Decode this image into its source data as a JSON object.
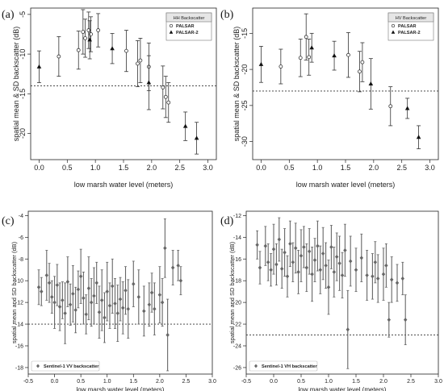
{
  "chart_data": [
    {
      "panel_label": "(a)",
      "type": "scatter",
      "style": "r",
      "xlabel": "low marsh water level (meters)",
      "ylabel": "spatial mean & SD backscatter (dB)",
      "xlim": [
        -0.15,
        3.15
      ],
      "ylim": [
        -23.3,
        -4.2
      ],
      "xticks": [
        0.0,
        0.5,
        1.0,
        1.5,
        2.0,
        2.5,
        3.0
      ],
      "xtick_labels": [
        "0.0",
        "0.5",
        "1.0",
        "1.5",
        "2.0",
        "2.5",
        "3.0"
      ],
      "yticks": [
        -20,
        -15,
        -10,
        -5
      ],
      "ytick_labels": [
        "-20",
        "-15",
        "-10",
        "-5"
      ],
      "threshold": -14.0,
      "legend": {
        "title": "HH Backscatter",
        "position": "top-right"
      },
      "series": [
        {
          "name": "PALSAR",
          "marker": "circle-open",
          "x": [
            0.35,
            0.7,
            0.78,
            0.82,
            0.88,
            0.92,
            1.05,
            1.55,
            1.75,
            1.8,
            1.95,
            2.2,
            2.25,
            2.3
          ],
          "y": [
            -10.3,
            -9.5,
            -7.2,
            -8.0,
            -7.0,
            -7.5,
            -7.0,
            -9.6,
            -11.2,
            -10.8,
            -11.6,
            -14.2,
            -15.4,
            -16.1
          ],
          "err": [
            2.5,
            2.4,
            2.8,
            2.4,
            2.3,
            2.2,
            2.1,
            2.6,
            2.9,
            2.8,
            3.0,
            2.7,
            2.6,
            2.5
          ]
        },
        {
          "name": "PALSAR-2",
          "marker": "triangle-filled",
          "x": [
            0.0,
            0.9,
            1.3,
            1.95,
            2.6,
            2.8
          ],
          "y": [
            -11.6,
            -8.2,
            -9.3,
            -13.6,
            -19.1,
            -20.6
          ],
          "err": [
            2.0,
            2.4,
            1.9,
            3.4,
            1.8,
            2.0
          ]
        }
      ]
    },
    {
      "panel_label": "(b)",
      "type": "scatter",
      "style": "r",
      "xlabel": "low marsh water level (meters)",
      "ylabel": "spatial mean & SD backscatter (dB)",
      "xlim": [
        -0.15,
        3.15
      ],
      "ylim": [
        -32.5,
        -11.5
      ],
      "xticks": [
        0.0,
        0.5,
        1.0,
        1.5,
        2.0,
        2.5,
        3.0
      ],
      "xtick_labels": [
        "0.0",
        "0.5",
        "1.0",
        "1.5",
        "2.0",
        "2.5",
        "3.0"
      ],
      "yticks": [
        -30,
        -25,
        -20,
        -15
      ],
      "ytick_labels": [
        "-30",
        "-25",
        "-20",
        "-15"
      ],
      "threshold": -23.0,
      "legend": {
        "title": "HV Backscatter",
        "position": "top-right"
      },
      "series": [
        {
          "name": "PALSAR",
          "marker": "circle-open",
          "x": [
            0.35,
            0.7,
            0.8,
            0.85,
            1.55,
            1.75,
            1.8,
            2.3
          ],
          "y": [
            -19.6,
            -18.4,
            -15.5,
            -18.3,
            -18.0,
            -20.3,
            -19.0,
            -25.1
          ],
          "err": [
            2.4,
            2.6,
            3.2,
            2.5,
            3.1,
            2.8,
            2.7,
            2.7
          ]
        },
        {
          "name": "PALSAR-2",
          "marker": "triangle-filled",
          "x": [
            0.0,
            0.9,
            1.3,
            1.95,
            2.6,
            2.8
          ],
          "y": [
            -19.3,
            -17.0,
            -18.1,
            -22.0,
            -25.4,
            -29.4
          ],
          "err": [
            2.5,
            2.0,
            2.0,
            3.5,
            1.4,
            1.6
          ]
        }
      ]
    },
    {
      "panel_label": "(c)",
      "type": "scatter",
      "style": "python",
      "xlabel": "low marsh water level (meters)",
      "ylabel": "spatial mean and SD backscatter (dB)",
      "xlim": [
        -0.5,
        3.0
      ],
      "ylim": [
        -18.6,
        -3.6
      ],
      "xticks": [
        -0.5,
        0.0,
        0.5,
        1.0,
        1.5,
        2.0,
        2.5,
        3.0
      ],
      "xtick_labels": [
        "-0.5",
        "0.0",
        "0.5",
        "1.0",
        "1.5",
        "2.0",
        "2.5",
        "3.0"
      ],
      "yticks": [
        -18,
        -16,
        -14,
        -12,
        -10,
        -8,
        -6,
        -4
      ],
      "ytick_labels": [
        "-18",
        "-16",
        "-14",
        "-12",
        "-10",
        "-8",
        "-6",
        "-4"
      ],
      "threshold": -14.0,
      "legend": {
        "title": "",
        "position": "bottom-left"
      },
      "series": [
        {
          "name": "Sentinel-1 VV backscatter",
          "marker": "diamond-filled",
          "x": [
            -0.3,
            -0.25,
            -0.15,
            -0.1,
            -0.05,
            0.0,
            0.05,
            0.1,
            0.15,
            0.2,
            0.25,
            0.3,
            0.35,
            0.4,
            0.45,
            0.5,
            0.55,
            0.6,
            0.65,
            0.7,
            0.75,
            0.8,
            0.85,
            0.9,
            0.95,
            1.0,
            1.05,
            1.1,
            1.15,
            1.2,
            1.25,
            1.3,
            1.35,
            1.4,
            1.5,
            1.6,
            1.7,
            1.8,
            1.85,
            1.9,
            2.0,
            2.05,
            2.1,
            2.15,
            2.25,
            2.35,
            2.4
          ],
          "y": [
            -10.6,
            -11.0,
            -9.5,
            -10.2,
            -11.5,
            -12.0,
            -10.4,
            -12.4,
            -11.8,
            -13.0,
            -10.1,
            -12.2,
            -11.2,
            -12.7,
            -10.8,
            -9.6,
            -11.6,
            -13.1,
            -10.7,
            -12.0,
            -11.4,
            -10.2,
            -12.9,
            -11.8,
            -13.4,
            -11.0,
            -12.3,
            -10.5,
            -12.1,
            -13.0,
            -11.7,
            -12.5,
            -10.9,
            -12.6,
            -10.3,
            -11.5,
            -12.8,
            -12.2,
            -11.1,
            -12.6,
            -11.3,
            -12.0,
            -7.0,
            -15.0,
            -8.8,
            -8.6,
            -10.0
          ],
          "err": [
            1.6,
            1.3,
            2.3,
            1.8,
            1.5,
            2.4,
            1.9,
            2.2,
            1.7,
            2.8,
            2.3,
            1.9,
            2.6,
            2.1,
            1.7,
            2.5,
            2.4,
            1.8,
            2.9,
            2.2,
            2.6,
            1.9,
            2.4,
            2.8,
            2.3,
            2.7,
            2.1,
            2.5,
            2.3,
            2.6,
            2.0,
            2.4,
            2.2,
            2.7,
            2.1,
            2.5,
            2.3,
            2.0,
            1.8,
            2.4,
            2.6,
            2.2,
            2.7,
            3.3,
            1.6,
            1.4,
            1.3
          ]
        }
      ]
    },
    {
      "panel_label": "(d)",
      "type": "scatter",
      "style": "python",
      "xlabel": "low marsh water level (meters)",
      "ylabel": "spatial mean and SD backscatter (dB)",
      "xlim": [
        -0.5,
        3.0
      ],
      "ylim": [
        -26.6,
        -11.6
      ],
      "xticks": [
        -0.5,
        0.0,
        0.5,
        1.0,
        1.5,
        2.0,
        2.5,
        3.0
      ],
      "xtick_labels": [
        "-0.5",
        "0.0",
        "0.5",
        "1.0",
        "1.5",
        "2.0",
        "2.5",
        "3.0"
      ],
      "yticks": [
        -26,
        -24,
        -22,
        -20,
        -18,
        -16,
        -14,
        -12
      ],
      "ytick_labels": [
        "-26",
        "-24",
        "-22",
        "-20",
        "-18",
        "-16",
        "-14",
        "-12"
      ],
      "threshold": -23.0,
      "legend": {
        "title": "",
        "position": "bottom-left"
      },
      "series": [
        {
          "name": "Sentinel-1 VH backscatter",
          "marker": "diamond-filled",
          "x": [
            -0.3,
            -0.25,
            -0.15,
            -0.1,
            -0.05,
            0.0,
            0.05,
            0.1,
            0.15,
            0.2,
            0.25,
            0.3,
            0.35,
            0.4,
            0.45,
            0.5,
            0.55,
            0.6,
            0.65,
            0.7,
            0.75,
            0.8,
            0.85,
            0.9,
            0.95,
            1.0,
            1.05,
            1.1,
            1.15,
            1.2,
            1.25,
            1.3,
            1.35,
            1.4,
            1.5,
            1.6,
            1.7,
            1.8,
            1.85,
            1.9,
            2.0,
            2.05,
            2.1,
            2.15,
            2.25,
            2.35,
            2.4
          ],
          "y": [
            -14.7,
            -16.8,
            -14.8,
            -16.3,
            -17.0,
            -15.1,
            -16.5,
            -14.2,
            -16.9,
            -15.4,
            -17.6,
            -14.6,
            -16.3,
            -15.0,
            -17.2,
            -15.7,
            -14.9,
            -16.8,
            -15.3,
            -17.4,
            -16.1,
            -14.8,
            -17.0,
            -15.5,
            -16.6,
            -18.6,
            -14.9,
            -17.2,
            -15.8,
            -16.4,
            -17.5,
            -15.2,
            -22.5,
            -16.2,
            -17.0,
            -15.9,
            -17.5,
            -17.6,
            -16.3,
            -17.8,
            -17.4,
            -16.6,
            -21.6,
            -17.9,
            -18.2,
            -17.8,
            -21.6
          ],
          "err": [
            1.3,
            1.5,
            1.8,
            1.7,
            1.5,
            2.3,
            1.9,
            2.0,
            1.8,
            2.2,
            1.9,
            2.1,
            1.8,
            2.3,
            2.0,
            2.4,
            1.9,
            2.2,
            2.1,
            2.5,
            2.0,
            2.3,
            2.2,
            2.4,
            2.1,
            2.5,
            2.0,
            2.3,
            2.2,
            2.5,
            2.1,
            2.4,
            3.6,
            2.3,
            2.0,
            2.2,
            2.3,
            2.1,
            1.9,
            2.2,
            2.4,
            2.0,
            1.6,
            2.1,
            1.7,
            1.5,
            2.3
          ]
        }
      ]
    }
  ]
}
